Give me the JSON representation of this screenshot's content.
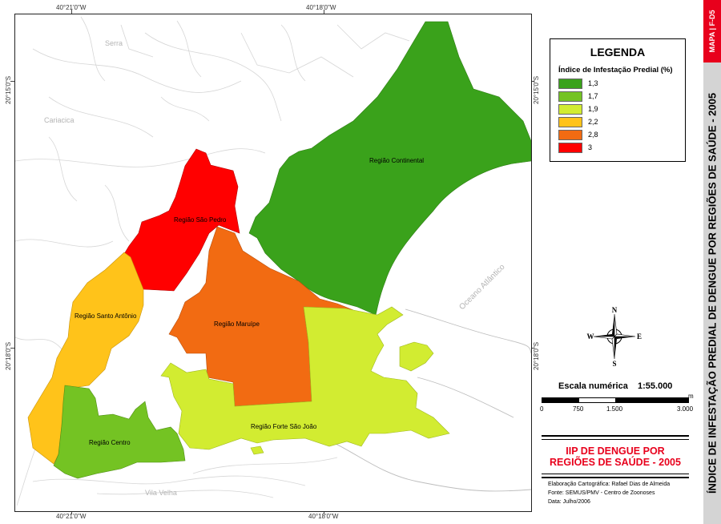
{
  "coordinates": {
    "top_left": "40°21'0\"W",
    "top_right": "40°18'0\"W",
    "bottom_left": "40°21'0\"W",
    "bottom_right": "40°18'0\"W",
    "left_upper": "20°15'0\"S",
    "left_lower": "20°18'0\"S",
    "right_upper": "20°15'0\"S",
    "right_lower": "20°18'0\"S"
  },
  "places": {
    "serra": "Serra",
    "cariacica": "Cariacica",
    "vila_velha": "Vila Velha",
    "ocean": "Oceano Atlântico"
  },
  "regions": [
    {
      "name": "Região Continental",
      "index": "1,3",
      "color": "#3aa21b"
    },
    {
      "name": "Região São Pedro",
      "index": "3",
      "color": "#ff0000"
    },
    {
      "name": "Região Maruípe",
      "index": "2,8",
      "color": "#f26b12"
    },
    {
      "name": "Região Santo Antônio",
      "index": "2,2",
      "color": "#ffc31a"
    },
    {
      "name": "Região Forte São João",
      "index": "1,9",
      "color": "#d2ec31"
    },
    {
      "name": "Região Centro",
      "index": "1,7",
      "color": "#74c323"
    }
  ],
  "legend": {
    "title": "LEGENDA",
    "subtitle": "Índice de Infestação Predial (%)",
    "items": [
      {
        "label": "1,3",
        "color": "#3aa21b"
      },
      {
        "label": "1,7",
        "color": "#74c323"
      },
      {
        "label": "1,9",
        "color": "#d2ec31"
      },
      {
        "label": "2,2",
        "color": "#ffc31a"
      },
      {
        "label": "2,8",
        "color": "#f26b12"
      },
      {
        "label": "3",
        "color": "#ff0000"
      }
    ]
  },
  "compass": {
    "n": "N",
    "s": "S",
    "e": "E",
    "w": "W"
  },
  "scale": {
    "title": "Escala numérica",
    "value": "1:55.000",
    "unit": "m",
    "labels": [
      "0",
      "750",
      "1.500",
      "3.000"
    ]
  },
  "title_box": {
    "line1": "IIP DE DENGUE POR",
    "line2": "REGIÕES DE SAÚDE - 2005"
  },
  "credits": {
    "line1": "Elaboração Cartográfica: Rafael Dias de Almeida",
    "line2": "Fonte: SEMUS/PMV - Centro de Zoonoses",
    "line3": "Data: Julho/2006"
  },
  "side": {
    "tag": "MAPA | F-D5",
    "title": "ÍNDICE DE INFESTAÇÃO PREDIAL DE DENGUE POR REGIÕES DE SAÚDE - 2005"
  },
  "colors": {
    "accent_red": "#e8001c",
    "side_grey": "#d4d4d4"
  }
}
